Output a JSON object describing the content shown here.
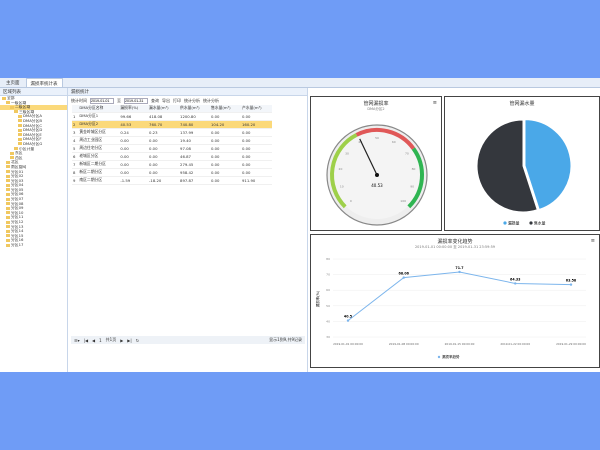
{
  "tabs": [
    "主页面",
    "漏损率统计表"
  ],
  "left": {
    "title": "区域列表",
    "items": [
      {
        "label": "全部",
        "lvl": 0
      },
      {
        "label": "一级区域",
        "lvl": 1
      },
      {
        "label": "二级区域",
        "lvl": 2,
        "sel": true
      },
      {
        "label": "三级区域",
        "lvl": 3
      },
      {
        "label": "DMA分区A",
        "lvl": 4
      },
      {
        "label": "DMA分区B",
        "lvl": 4
      },
      {
        "label": "DMA分区C",
        "lvl": 4
      },
      {
        "label": "DMA分区D",
        "lvl": 4
      },
      {
        "label": "DMA分区E",
        "lvl": 4
      },
      {
        "label": "DMA分区F",
        "lvl": 4
      },
      {
        "label": "DMA分区G",
        "lvl": 4
      },
      {
        "label": "小区计量",
        "lvl": 3
      },
      {
        "label": "东区",
        "lvl": 2
      },
      {
        "label": "西区",
        "lvl": 2
      },
      {
        "label": "北区",
        "lvl": 1
      },
      {
        "label": "南区管网",
        "lvl": 1
      },
      {
        "label": "分区01",
        "lvl": 1
      },
      {
        "label": "分区02",
        "lvl": 1
      },
      {
        "label": "分区03",
        "lvl": 1
      },
      {
        "label": "分区04",
        "lvl": 1
      },
      {
        "label": "分区05",
        "lvl": 1
      },
      {
        "label": "分区06",
        "lvl": 1
      },
      {
        "label": "分区07",
        "lvl": 1
      },
      {
        "label": "分区08",
        "lvl": 1
      },
      {
        "label": "分区09",
        "lvl": 1
      },
      {
        "label": "分区10",
        "lvl": 1
      },
      {
        "label": "分区11",
        "lvl": 1
      },
      {
        "label": "分区12",
        "lvl": 1
      },
      {
        "label": "分区13",
        "lvl": 1
      },
      {
        "label": "分区14",
        "lvl": 1
      },
      {
        "label": "分区15",
        "lvl": 1
      },
      {
        "label": "分区16",
        "lvl": 1
      },
      {
        "label": "分区17",
        "lvl": 1
      }
    ]
  },
  "main": {
    "title": "漏损统计",
    "toolbar": {
      "date_label": "统计时间",
      "start": "2019-01-01",
      "to": "至",
      "end": "2019-01-31",
      "buttons": [
        "查询",
        "导出",
        "打印",
        "统计分析",
        "统计分析"
      ]
    },
    "columns": [
      "",
      "DMA分区名称",
      "漏损率(%)",
      "漏水量(m³)",
      "供水量(m³)",
      "售水量(m³)",
      "产水量(m³)"
    ],
    "rows": [
      [
        "1",
        "DMA分区1",
        "99.66",
        "418.08",
        "1200.80",
        "0.00",
        "0.00"
      ],
      [
        "2",
        "DMA分区2",
        "40.53",
        "760.70",
        "740.80",
        "104.20",
        "160.20"
      ],
      [
        "3",
        "黄金岭城区分区",
        "0.24",
        "0.23",
        "137.99",
        "0.00",
        "0.00"
      ],
      [
        "4",
        "周边工业园区",
        "0.00",
        "0.00",
        "19.40",
        "0.00",
        "0.00"
      ],
      [
        "5",
        "周边住宅分区",
        "0.00",
        "0.00",
        "97.08",
        "0.00",
        "0.00"
      ],
      [
        "6",
        "老城区分区",
        "0.00",
        "0.00",
        "46.87",
        "0.00",
        "0.00"
      ],
      [
        "7",
        "新城区二期分区",
        "0.00",
        "0.00",
        "279.45",
        "0.00",
        "0.00"
      ],
      [
        "8",
        "新区二期分区",
        "0.00",
        "0.00",
        "958.42",
        "0.00",
        "0.00"
      ],
      [
        "9",
        "南区二期分区",
        "-1.59",
        "-18.20",
        "897.87",
        "0.00",
        "911.90"
      ]
    ],
    "pager": {
      "page": "1",
      "total": "共1页",
      "info": "显示1到9,共9记录"
    }
  },
  "gauge": {
    "title": "管网漏损率",
    "subtitle": "DMA分区2",
    "value": 40.53,
    "value_label": "40.53",
    "min": 0,
    "max": 100
  },
  "pie": {
    "title": "管网漏水量",
    "slices": [
      {
        "name": "漏损量",
        "value": 45,
        "color": "#4aa8e8"
      },
      {
        "name": "售水量",
        "value": 55,
        "color": "#34373d"
      }
    ]
  },
  "chart_data": {
    "type": "line",
    "title": "漏损率变化趋势",
    "subtitle": "2019-01-01 00:00:00 至 2019-01-31 23:59:59",
    "ylabel": "漏损率(%)",
    "x": [
      "2019-01-01 00:00:00",
      "2019-01-08 00:00:00",
      "2019-01-15 00:00:00",
      "2019-01-22 00:00:00",
      "2019-01-29 00:00:00"
    ],
    "series": [
      {
        "name": "漏损率趋势",
        "values": [
          40.5,
          68.06,
          71.7,
          64.33,
          63.58
        ]
      }
    ],
    "yticks": [
      30,
      40,
      50,
      60,
      70,
      80
    ],
    "ylim": [
      30,
      80
    ],
    "color": "#7cb5ec",
    "legend": "bottom"
  }
}
